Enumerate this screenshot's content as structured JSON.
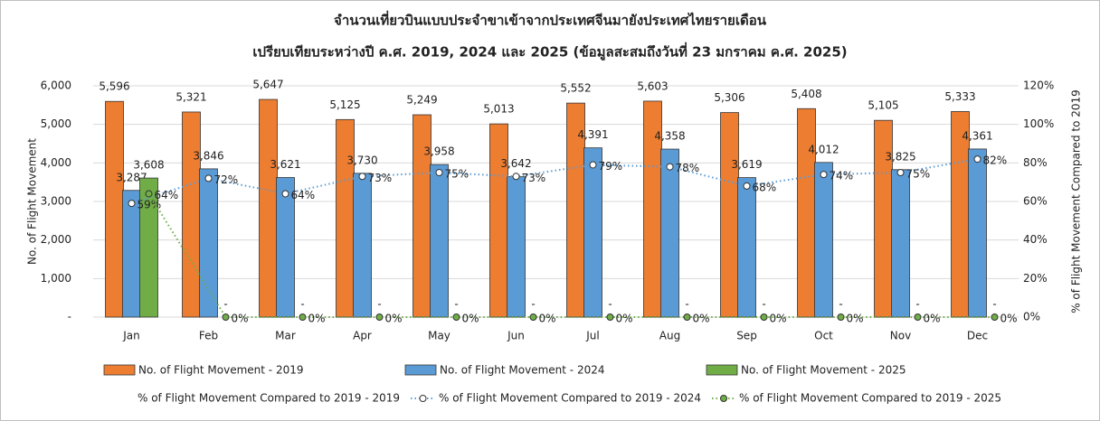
{
  "chart_data": {
    "type": "bar-line",
    "title": [
      "จำนวนเที่ยวบินแบบประจำขาเข้าจากประเทศจีนมายังประเทศไทยรายเดือน",
      "เปรียบเทียบระหว่างปี ค.ศ. 2019, 2024 และ 2025 (ข้อมูลสะสมถึงวันที่ 23 มกราคม ค.ศ. 2025)"
    ],
    "y_label": "No. of Flight Movement",
    "y2_label": "% of Flight Movement Compared to 2019",
    "categories": [
      "Jan",
      "Feb",
      "Mar",
      "Apr",
      "May",
      "Jun",
      "Jul",
      "Aug",
      "Sep",
      "Oct",
      "Nov",
      "Dec"
    ],
    "ylim": [
      0,
      6000
    ],
    "yticks": [
      {
        "value": 0,
        "label": "-"
      },
      {
        "value": 1000,
        "label": "1,000"
      },
      {
        "value": 2000,
        "label": "2,000"
      },
      {
        "value": 3000,
        "label": "3,000"
      },
      {
        "value": 4000,
        "label": "4,000"
      },
      {
        "value": 5000,
        "label": "5,000"
      },
      {
        "value": 6000,
        "label": "6,000"
      }
    ],
    "y2lim": [
      0,
      120
    ],
    "y2ticks": [
      {
        "value": 0,
        "label": "0%"
      },
      {
        "value": 20,
        "label": "20%"
      },
      {
        "value": 40,
        "label": "40%"
      },
      {
        "value": 60,
        "label": "60%"
      },
      {
        "value": 80,
        "label": "80%"
      },
      {
        "value": 100,
        "label": "100%"
      },
      {
        "value": 120,
        "label": "120%"
      }
    ],
    "grid": true,
    "series": [
      {
        "name": "No. of Flight Movement - 2019",
        "type": "bar",
        "color": "#ed7d31",
        "values": [
          5596,
          5321,
          5647,
          5125,
          5249,
          5013,
          5552,
          5603,
          5306,
          5408,
          5105,
          5333
        ],
        "value_labels": [
          "5,596",
          "5,321",
          "5,647",
          "5,125",
          "5,249",
          "5,013",
          "5,552",
          "5,603",
          "5,306",
          "5,408",
          "5,105",
          "5,333"
        ]
      },
      {
        "name": "No. of Flight Movement - 2024",
        "type": "bar",
        "color": "#5b9bd5",
        "values": [
          3287,
          3846,
          3621,
          3730,
          3958,
          3642,
          4391,
          4358,
          3619,
          4012,
          3825,
          4361
        ],
        "value_labels": [
          "3,287",
          "3,846",
          "3,621",
          "3,730",
          "3,958",
          "3,642",
          "4,391",
          "4,358",
          "3,619",
          "4,012",
          "3,825",
          "4,361"
        ]
      },
      {
        "name": "No. of Flight Movement - 2025",
        "type": "bar",
        "color": "#70ad47",
        "values": [
          3608,
          0,
          0,
          0,
          0,
          0,
          0,
          0,
          0,
          0,
          0,
          0
        ],
        "value_labels": [
          "3,608",
          "-",
          "-",
          "-",
          "-",
          "-",
          "-",
          "-",
          "-",
          "-",
          "-",
          "-"
        ]
      },
      {
        "name": "% of Flight Movement Compared to 2019 - 2019",
        "type": "line",
        "axis": "y2",
        "color": "#ed7d31",
        "values": [
          null,
          null,
          null,
          null,
          null,
          null,
          null,
          null,
          null,
          null,
          null,
          null
        ]
      },
      {
        "name": "% of Flight Movement Compared to 2019 - 2024",
        "type": "line",
        "axis": "y2",
        "color": "#5b9bd5",
        "values": [
          59,
          72,
          64,
          73,
          75,
          73,
          79,
          78,
          68,
          74,
          75,
          82
        ],
        "value_labels": [
          "59%",
          "72%",
          "64%",
          "73%",
          "75%",
          "73%",
          "79%",
          "78%",
          "68%",
          "74%",
          "75%",
          "82%"
        ]
      },
      {
        "name": "% of Flight Movement Compared to 2019 - 2025",
        "type": "line",
        "axis": "y2",
        "color": "#70ad47",
        "values": [
          64,
          0,
          0,
          0,
          0,
          0,
          0,
          0,
          0,
          0,
          0,
          0
        ],
        "value_labels": [
          "64%",
          "0%",
          "0%",
          "0%",
          "0%",
          "0%",
          "0%",
          "0%",
          "0%",
          "0%",
          "0%",
          "0%"
        ]
      }
    ]
  }
}
